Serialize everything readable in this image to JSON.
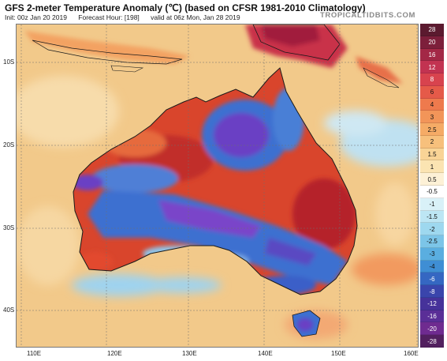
{
  "header": {
    "title": "GFS 2-meter Temperature Anomaly (℃) (based on CFSR 1981-2010 Climatology)",
    "init": "Init: 00z Jan 20 2019",
    "forecast": "Forecast Hour: [198]",
    "valid": "valid at 06z Mon, Jan 28 2019",
    "brand": "TROPICALTIDBITS.COM"
  },
  "map": {
    "lat_labels": [
      "10S",
      "20S",
      "30S",
      "40S"
    ],
    "lon_labels": [
      "110E",
      "120E",
      "130E",
      "140E",
      "150E",
      "160E"
    ],
    "colors": {
      "ocean_warm": "#f2c98a",
      "land_hot": "#d9452c",
      "land_very_hot": "#b0202a",
      "cold": "#3d6fd0",
      "very_cold": "#6a3fc4",
      "cool": "#8fc6ea",
      "tropics_warm": "#c9304a"
    }
  },
  "colorbar": {
    "ticks": [
      "28",
      "20",
      "16",
      "12",
      "8",
      "6",
      "4",
      "3",
      "2.5",
      "2",
      "1.5",
      "1",
      "0.5",
      "-0.5",
      "-1",
      "-1.5",
      "-2",
      "-2.5",
      "-3",
      "-4",
      "-6",
      "-8",
      "-12",
      "-16",
      "-20",
      "-28"
    ],
    "colors": [
      "#5b1a2f",
      "#7d1f3b",
      "#a32846",
      "#c23351",
      "#d8434e",
      "#e55a49",
      "#ee7a4d",
      "#f29559",
      "#f5ab66",
      "#f7c07c",
      "#f9d496",
      "#fbe4b2",
      "#fdf1d6",
      "#ffffff",
      "#d9f1f8",
      "#bde6f4",
      "#9ed8ef",
      "#7cc5e8",
      "#5aaee0",
      "#3f8ed4",
      "#3567c2",
      "#3a45ac",
      "#46329a",
      "#5a2e97",
      "#6f2b90",
      "#52205f"
    ]
  }
}
